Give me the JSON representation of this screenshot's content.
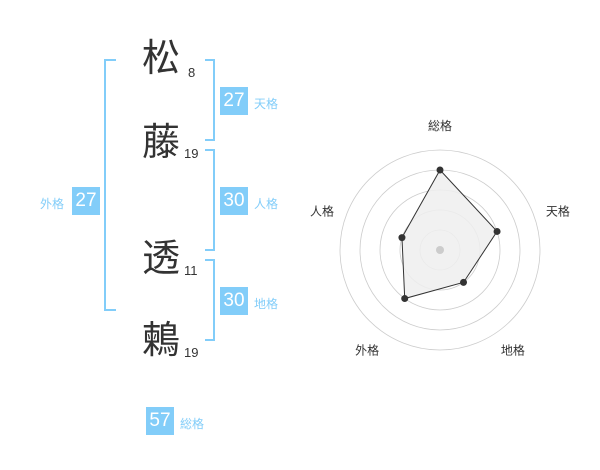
{
  "name": {
    "chars": [
      {
        "char": "松",
        "strokes": "8"
      },
      {
        "char": "藤",
        "strokes": "19"
      },
      {
        "char": "透",
        "strokes": "11"
      },
      {
        "char": "鶫",
        "strokes": "19"
      }
    ]
  },
  "kaku": {
    "tenkaku": {
      "label": "天格",
      "value": "27"
    },
    "jinkaku": {
      "label": "人格",
      "value": "30"
    },
    "chikaku": {
      "label": "地格",
      "value": "30"
    },
    "gaikaku": {
      "label": "外格",
      "value": "27"
    },
    "soukaku": {
      "label": "総格",
      "value": "57"
    }
  },
  "colors": {
    "accent": "#82cdf9",
    "text": "#333333",
    "radar_fill": "#eeeeee",
    "grid": "#cccccc"
  },
  "chart_data": {
    "type": "radar",
    "categories": [
      "総格",
      "天格",
      "地格",
      "外格",
      "人格"
    ],
    "values": [
      4,
      3,
      2,
      3,
      2
    ],
    "range": [
      0,
      5
    ],
    "rings": 5
  }
}
